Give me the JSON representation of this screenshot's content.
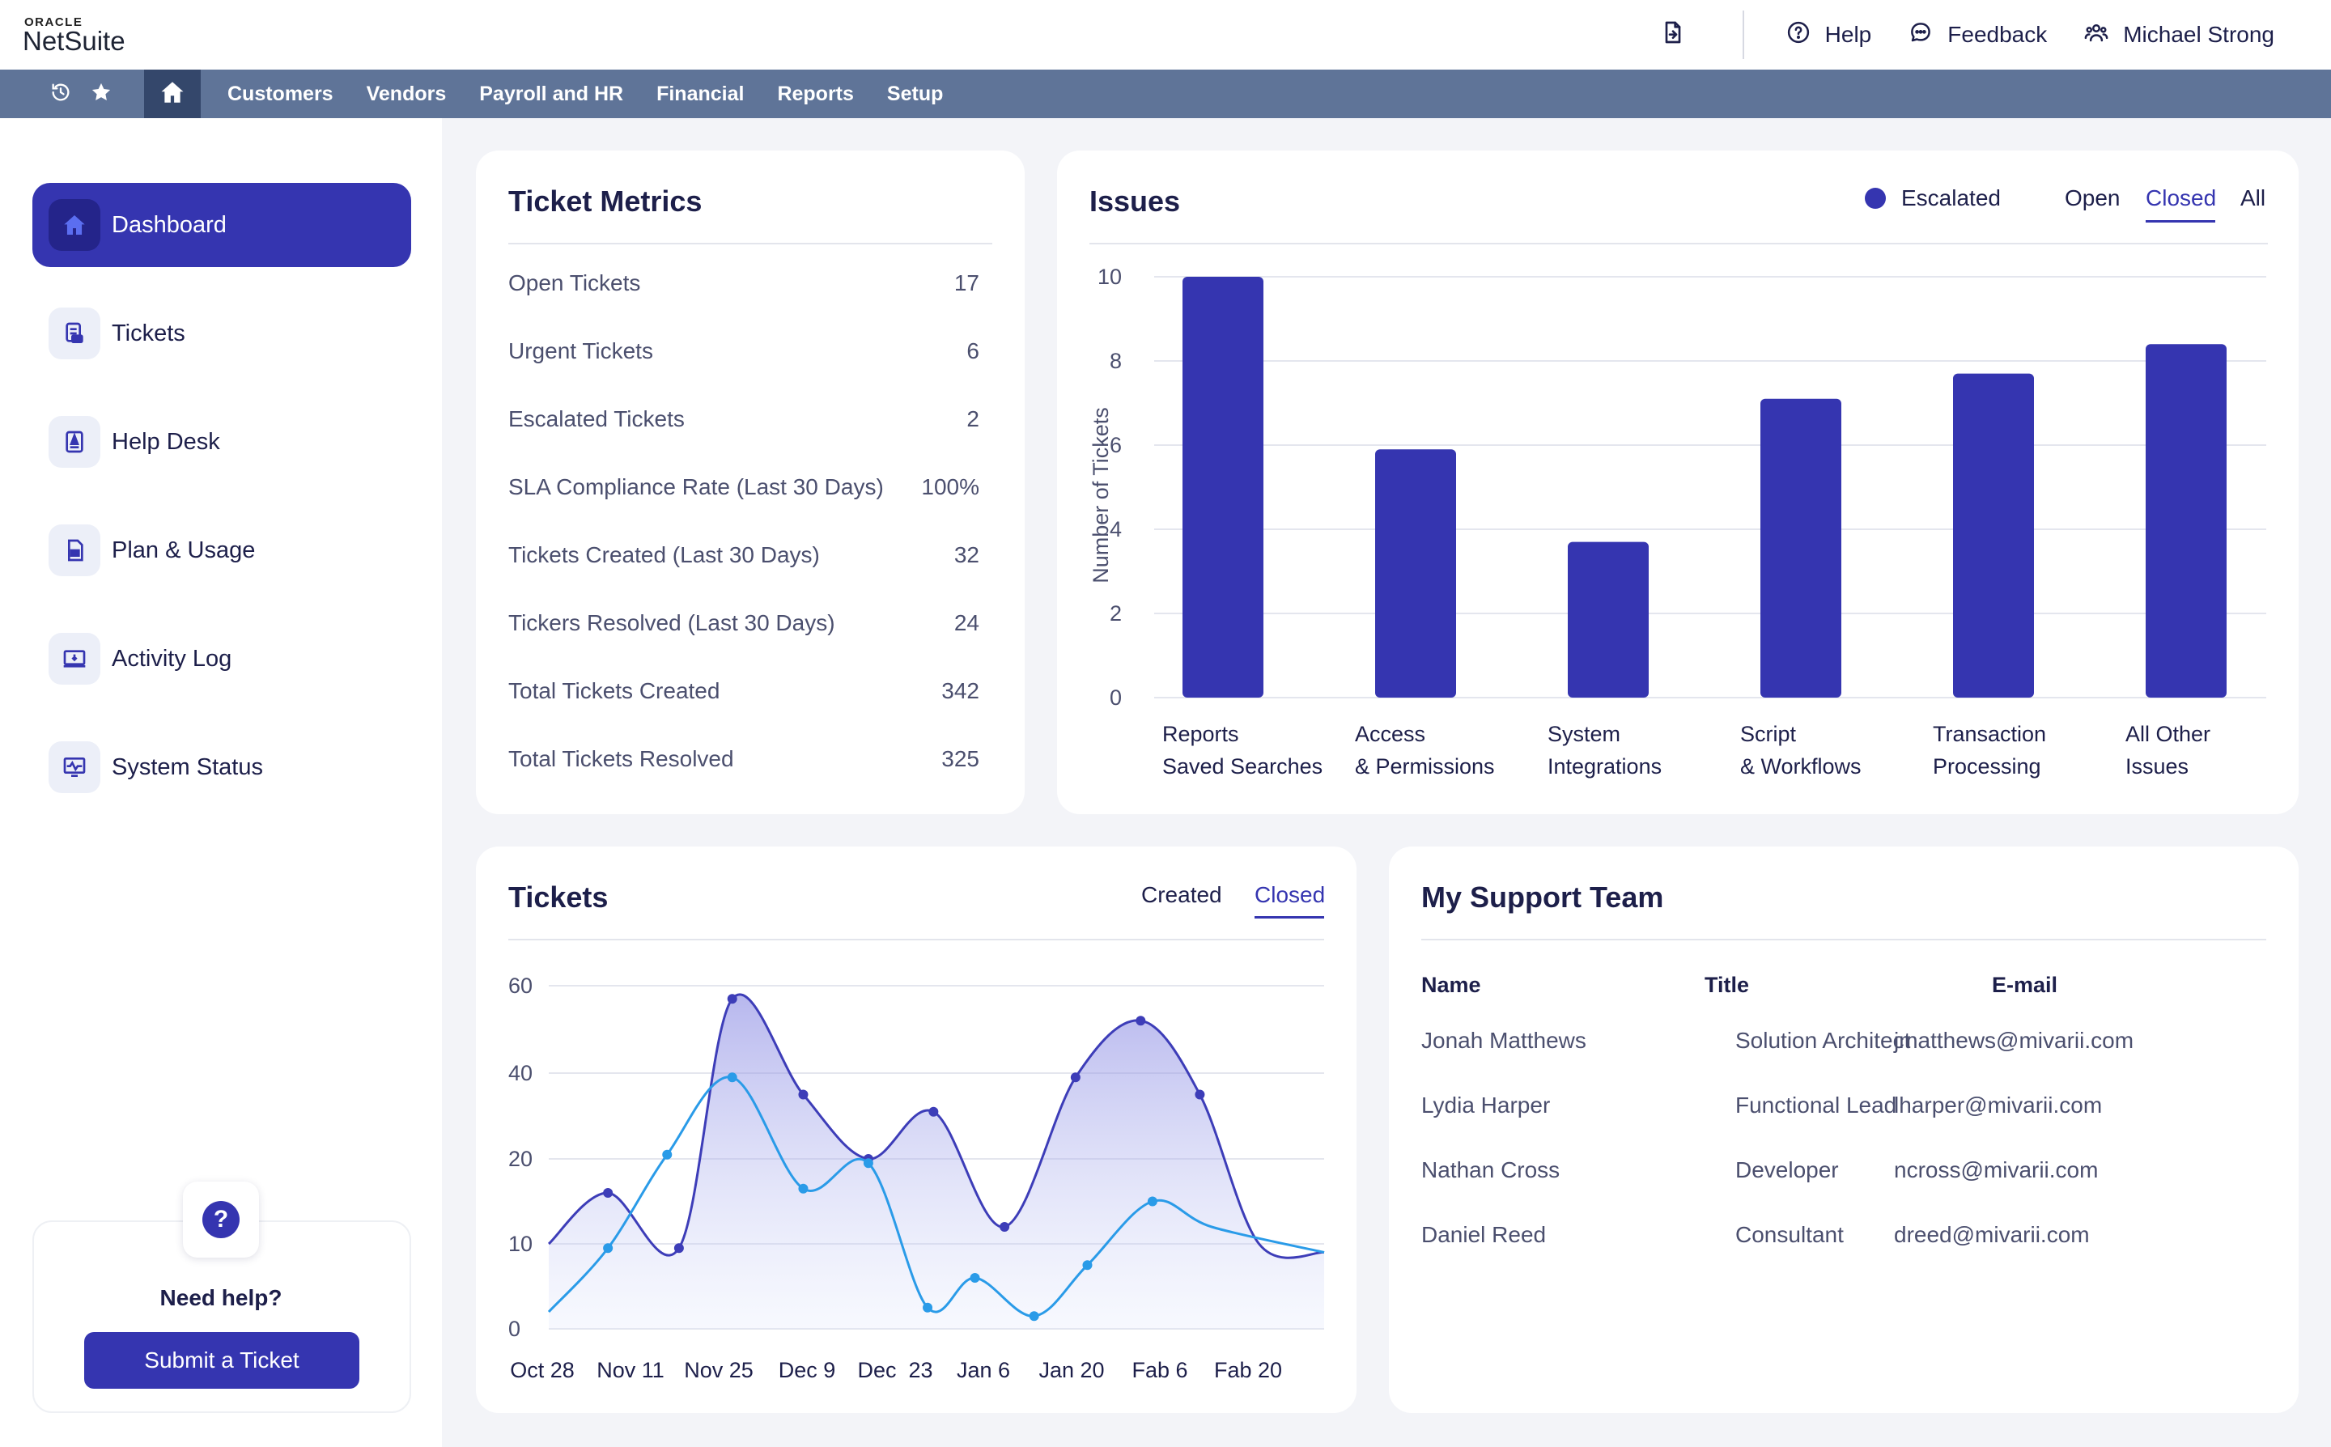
{
  "app": {
    "logo_oracle": "ORACLE",
    "logo_netsuite": "NetSuite"
  },
  "topbar": {
    "file_icon": "file-export-icon",
    "help_label": "Help",
    "feedback_label": "Feedback",
    "user_name": "Michael Strong"
  },
  "navbar": {
    "icons": [
      "history-icon",
      "star-icon",
      "home-icon"
    ],
    "items": [
      "Customers",
      "Vendors",
      "Payroll and HR",
      "Financial",
      "Reports",
      "Setup"
    ],
    "color": "#5f7498"
  },
  "sidebar": {
    "items": [
      {
        "label": "Dashboard",
        "icon": "home-icon",
        "active": true
      },
      {
        "label": "Tickets",
        "icon": "ticket-icon",
        "active": false
      },
      {
        "label": "Help Desk",
        "icon": "help-desk-icon",
        "active": false
      },
      {
        "label": "Plan & Usage",
        "icon": "plan-icon",
        "active": false
      },
      {
        "label": "Activity Log",
        "icon": "activity-log-icon",
        "active": false
      },
      {
        "label": "System Status",
        "icon": "system-status-icon",
        "active": false
      }
    ],
    "help": {
      "icon_text": "?",
      "title": "Need help?",
      "button_label": "Submit a Ticket"
    }
  },
  "ticket_metrics": {
    "title": "Ticket Metrics",
    "rows": [
      {
        "label": "Open Tickets",
        "value": "17"
      },
      {
        "label": "Urgent Tickets",
        "value": "6"
      },
      {
        "label": "Escalated Tickets",
        "value": "2"
      },
      {
        "label": "SLA Compliance Rate (Last 30 Days)",
        "value": "100%"
      },
      {
        "label": "Tickets Created (Last 30 Days)",
        "value": "32"
      },
      {
        "label": "Tickers Resolved (Last 30 Days)",
        "value": "24"
      },
      {
        "label": "Total Tickets Created",
        "value": "342"
      },
      {
        "label": "Total Tickets Resolved",
        "value": "325"
      }
    ]
  },
  "issues": {
    "title": "Issues",
    "legend_label": "Escalated",
    "tabs": [
      "Open",
      "Closed",
      "All"
    ],
    "active_tab": "Closed",
    "accent": "#3535b0"
  },
  "tickets": {
    "title": "Tickets",
    "tabs": [
      "Created",
      "Closed"
    ],
    "active_tab": "Closed"
  },
  "support_team": {
    "title": "My Support Team",
    "headers": [
      "Name",
      "Title",
      "E-mail"
    ],
    "rows": [
      [
        "Jonah Matthews",
        "Solution Architect",
        "jmatthews@mivarii.com"
      ],
      [
        "Lydia Harper",
        "Functional Lead",
        "lharper@mivarii.com"
      ],
      [
        "Nathan Cross",
        "Developer",
        "ncross@mivarii.com"
      ],
      [
        "Daniel Reed",
        "Consultant",
        "dreed@mivarii.com"
      ]
    ]
  },
  "chart_data": [
    {
      "type": "bar",
      "title": "Issues",
      "ylabel": "Number of Tickets",
      "xlabel": "",
      "categories": [
        [
          "Reports",
          "Saved Searches"
        ],
        [
          "Access",
          "& Permissions"
        ],
        [
          "System",
          "Integrations"
        ],
        [
          "Script",
          "& Workflows"
        ],
        [
          "Transaction",
          "Processing"
        ],
        [
          "All Other",
          "Issues"
        ]
      ],
      "series": [
        {
          "name": "Escalated",
          "values": [
            10,
            5.9,
            3.7,
            7.1,
            7.7,
            8.4
          ]
        }
      ],
      "ylim": [
        0,
        10
      ],
      "yticks": [
        0,
        2,
        4,
        6,
        8,
        10
      ],
      "grid": true,
      "legend": "top-right",
      "color": "#3535b0"
    },
    {
      "type": "area",
      "title": "Tickets",
      "xlabel": "",
      "ylabel": "",
      "x": [
        "Oct 28",
        "Nov 11",
        "Nov 25",
        "Dec 9",
        "Dec  23",
        "Jan 6",
        "Jan 20",
        "Fab 6",
        "Fab 20"
      ],
      "yticks": [
        "0",
        "10",
        "20",
        "40",
        "60"
      ],
      "grid": true,
      "series": [
        {
          "color": "#3d3db8",
          "points": [
            [
              0,
              10
            ],
            [
              0.5,
              16
            ],
            [
              1.1,
              9.5
            ],
            [
              1.55,
              57
            ],
            [
              2.15,
              35
            ],
            [
              2.7,
              20
            ],
            [
              3.25,
              31
            ],
            [
              3.85,
              12
            ],
            [
              4.45,
              39
            ],
            [
              5.0,
              52
            ],
            [
              5.5,
              35
            ],
            [
              6.0,
              10
            ],
            [
              6.55,
              9
            ]
          ],
          "markers": [
            1,
            2,
            3,
            4,
            5,
            6,
            7,
            8,
            9,
            10
          ]
        },
        {
          "color": "#2a9be8",
          "points": [
            [
              0,
              2
            ],
            [
              0.5,
              9.5
            ],
            [
              1.0,
              21
            ],
            [
              1.55,
              39
            ],
            [
              2.15,
              16.5
            ],
            [
              2.7,
              19.5
            ],
            [
              3.2,
              2.5
            ],
            [
              3.6,
              6
            ],
            [
              4.1,
              1.5
            ],
            [
              4.55,
              7.5
            ],
            [
              5.1,
              15
            ],
            [
              5.6,
              12
            ],
            [
              6.55,
              9
            ]
          ],
          "markers": [
            1,
            2,
            3,
            4,
            5,
            6,
            7,
            8,
            9,
            10
          ]
        }
      ]
    }
  ]
}
